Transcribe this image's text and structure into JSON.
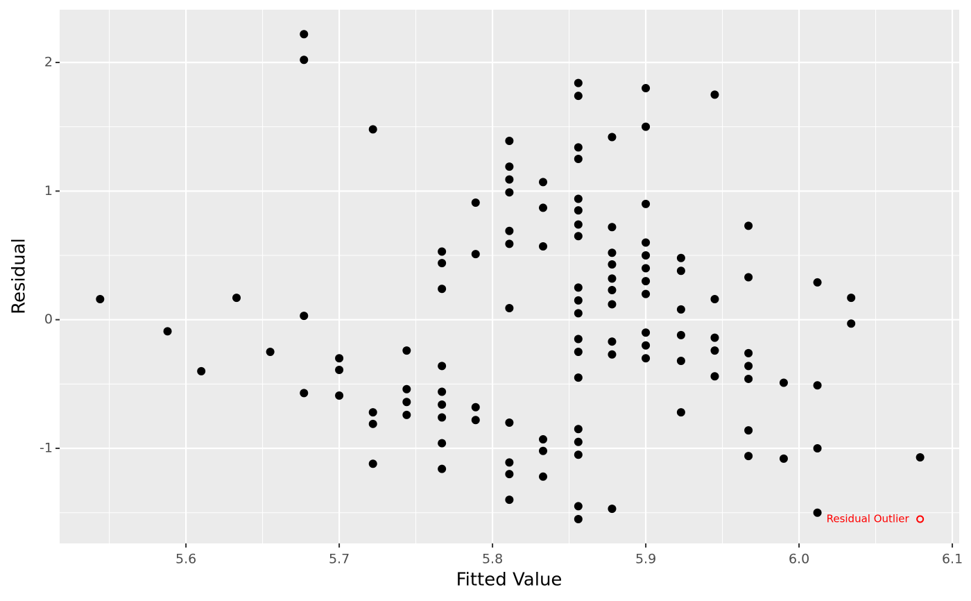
{
  "chart_data": {
    "type": "scatter",
    "x_label": "Fitted Value",
    "y_label": "Residual",
    "series": [
      {
        "color": "#000000",
        "x": [
          5.544,
          5.588,
          5.61,
          5.633,
          5.655,
          5.677,
          5.677,
          5.677,
          5.677,
          5.7,
          5.7,
          5.7,
          5.722,
          5.722,
          5.722,
          5.722,
          5.744,
          5.744,
          5.744,
          5.744,
          5.767,
          5.767,
          5.767,
          5.767,
          5.767,
          5.767,
          5.767,
          5.767,
          5.767,
          5.789,
          5.789,
          5.789,
          5.789,
          5.811,
          5.811,
          5.811,
          5.811,
          5.811,
          5.811,
          5.811,
          5.811,
          5.811,
          5.811,
          5.811,
          5.833,
          5.833,
          5.833,
          5.833,
          5.833,
          5.833,
          5.856,
          5.856,
          5.856,
          5.856,
          5.856,
          5.856,
          5.856,
          5.856,
          5.856,
          5.856,
          5.856,
          5.856,
          5.856,
          5.856,
          5.856,
          5.856,
          5.856,
          5.856,
          5.856,
          5.878,
          5.878,
          5.878,
          5.878,
          5.878,
          5.878,
          5.878,
          5.878,
          5.878,
          5.878,
          5.9,
          5.9,
          5.9,
          5.9,
          5.9,
          5.9,
          5.9,
          5.9,
          5.9,
          5.9,
          5.9,
          5.923,
          5.923,
          5.923,
          5.923,
          5.923,
          5.923,
          5.945,
          5.945,
          5.945,
          5.945,
          5.945,
          5.967,
          5.967,
          5.967,
          5.967,
          5.967,
          5.967,
          5.967,
          5.99,
          5.99,
          6.012,
          6.012,
          6.012,
          6.012,
          6.034,
          6.034,
          6.079
        ],
        "values": [
          0.16,
          -0.09,
          -0.4,
          0.17,
          -0.25,
          2.22,
          2.02,
          0.03,
          -0.57,
          -0.3,
          -0.39,
          -0.59,
          1.48,
          -0.72,
          -0.81,
          -1.12,
          -0.24,
          -0.54,
          -0.64,
          -0.74,
          0.53,
          0.44,
          0.24,
          -0.36,
          -0.56,
          -0.66,
          -0.76,
          -0.96,
          -1.16,
          0.91,
          0.51,
          -0.68,
          -0.78,
          1.39,
          1.19,
          1.09,
          0.99,
          0.69,
          0.59,
          0.09,
          -0.8,
          -1.11,
          -1.2,
          -1.4,
          1.07,
          0.87,
          0.57,
          -0.93,
          -1.02,
          -1.22,
          1.84,
          1.74,
          1.34,
          1.25,
          0.94,
          0.85,
          0.74,
          0.65,
          0.25,
          0.15,
          0.05,
          -0.15,
          -0.25,
          -0.45,
          -0.85,
          -0.95,
          -1.05,
          -1.45,
          -1.55,
          1.42,
          0.72,
          0.52,
          0.43,
          0.32,
          0.23,
          0.12,
          -0.17,
          -0.27,
          -1.47,
          1.8,
          1.5,
          0.9,
          0.6,
          0.5,
          0.4,
          0.3,
          0.2,
          -0.1,
          -0.2,
          -0.3,
          0.48,
          0.38,
          0.08,
          -0.12,
          -0.32,
          -0.72,
          1.75,
          0.16,
          -0.14,
          -0.24,
          -0.44,
          0.73,
          0.33,
          -0.26,
          -0.36,
          -0.46,
          -0.86,
          -1.06,
          -0.49,
          -1.08,
          0.29,
          -0.51,
          -1.0,
          -1.5,
          0.17,
          -0.03,
          -1.07
        ]
      }
    ],
    "annotation": {
      "text": "Residual Outlier",
      "x": 6.079,
      "y": -1.55,
      "color": "#ff0000"
    },
    "xlim": [
      5.5176,
      6.1045
    ],
    "ylim": [
      -1.739,
      2.41
    ],
    "xticks": [
      5.6,
      5.7,
      5.8,
      5.9,
      {
        "value": 6,
        "label": "6.0"
      },
      6.1
    ],
    "yticks": [
      -1,
      0,
      1,
      2
    ],
    "grid": true
  }
}
